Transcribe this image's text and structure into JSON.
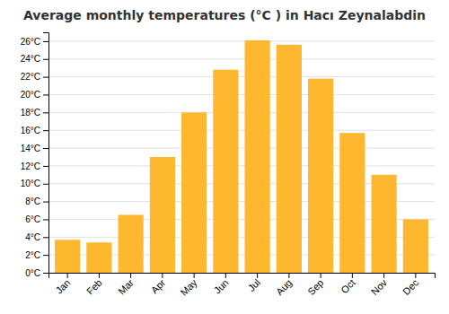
{
  "chart_data": {
    "type": "bar",
    "title": "Average monthly temperatures (°C ) in Hacı Zeynalabdin",
    "categories": [
      "Jan",
      "Feb",
      "Mar",
      "Apr",
      "May",
      "Jun",
      "Jul",
      "Aug",
      "Sep",
      "Oct",
      "Nov",
      "Dec"
    ],
    "values": [
      3.7,
      3.4,
      6.5,
      13.0,
      18.0,
      22.8,
      26.1,
      25.6,
      21.8,
      15.7,
      11.0,
      6.0
    ],
    "color": "#FDB830",
    "ylim": [
      0,
      27
    ],
    "yticks": [
      {
        "value": 0,
        "label": "0°C"
      },
      {
        "value": 2,
        "label": "2°C"
      },
      {
        "value": 4,
        "label": "4°C"
      },
      {
        "value": 6,
        "label": "6°C"
      },
      {
        "value": 8,
        "label": "8°C"
      },
      {
        "value": 10,
        "label": "10°C"
      },
      {
        "value": 12,
        "label": "12°C"
      },
      {
        "value": 14,
        "label": "14°C"
      },
      {
        "value": 16,
        "label": "16°C"
      },
      {
        "value": 18,
        "label": "18°C"
      },
      {
        "value": 20,
        "label": "20°C"
      },
      {
        "value": 22,
        "label": "22°C"
      },
      {
        "value": 24,
        "label": "24°C"
      },
      {
        "value": 26,
        "label": "26°C"
      }
    ],
    "grid": true
  }
}
